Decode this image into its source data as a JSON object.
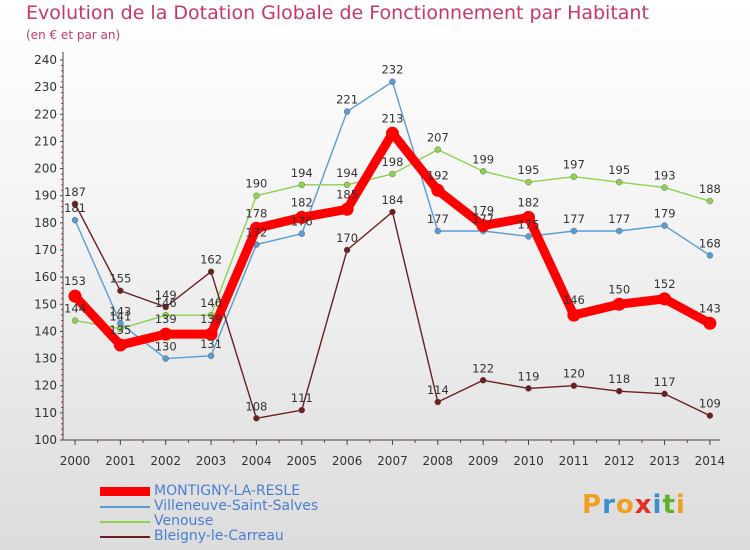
{
  "header": {
    "title": "Evolution de la Dotation Globale de Fonctionnement par Habitant",
    "subtitle": "(en € et par an)"
  },
  "logo": {
    "letters": [
      "P",
      "r",
      "o",
      "x",
      "i",
      "t",
      "i"
    ],
    "colors": [
      "#f0a020",
      "#3a8fd0",
      "#f0a020",
      "#e03020",
      "#3a8fd0",
      "#60b030",
      "#f0a020"
    ]
  },
  "chart_data": {
    "type": "line",
    "title": "Evolution de la Dotation Globale de Fonctionnement par Habitant",
    "subtitle": "(en € et par an)",
    "xlabel": "",
    "ylabel": "",
    "x": [
      "2000",
      "2001",
      "2002",
      "2003",
      "2004",
      "2005",
      "2006",
      "2007",
      "2008",
      "2009",
      "2010",
      "2011",
      "2012",
      "2013",
      "2014"
    ],
    "ylim": [
      100,
      240
    ],
    "yticks": [
      100,
      110,
      120,
      130,
      140,
      150,
      160,
      170,
      180,
      190,
      200,
      210,
      220,
      230,
      240
    ],
    "grid": false,
    "legend": "bottom-left",
    "series": [
      {
        "name": "Villeneuve-Saint-Salves",
        "color": "#5b9bd5",
        "values": [
          181,
          143,
          130,
          131,
          172,
          176,
          221,
          232,
          177,
          177,
          175,
          177,
          177,
          179,
          168
        ]
      },
      {
        "name": "Venouse",
        "color": "#8ed24f",
        "values": [
          144,
          141,
          146,
          146,
          190,
          194,
          194,
          198,
          207,
          199,
          195,
          197,
          195,
          193,
          188
        ]
      },
      {
        "name": "Bleigny-le-Carreau",
        "color": "#6b1f1f",
        "values": [
          187,
          155,
          149,
          162,
          108,
          111,
          170,
          184,
          114,
          122,
          119,
          120,
          118,
          117,
          109
        ]
      },
      {
        "name": "MONTIGNY-LA-RESLE",
        "color": "#ff0000",
        "values": [
          153,
          135,
          139,
          139,
          178,
          182,
          185,
          213,
          192,
          179,
          182,
          146,
          150,
          152,
          143
        ]
      }
    ]
  }
}
